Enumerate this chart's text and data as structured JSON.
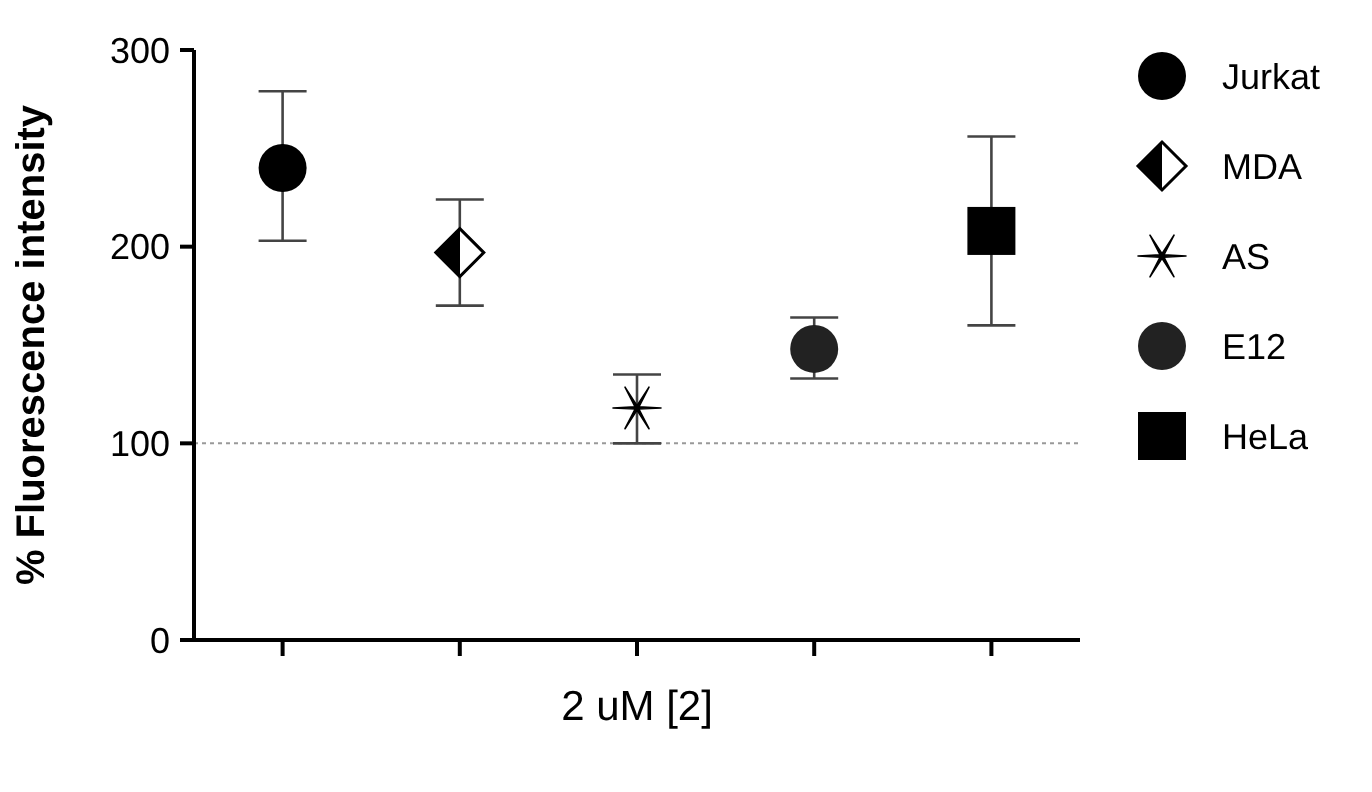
{
  "chart_data": {
    "type": "scatter",
    "xlabel": "2 uM [2]",
    "ylabel": "% Fluorescence intensity",
    "categories": [
      null,
      null,
      null,
      null,
      null
    ],
    "ylim": [
      0,
      300
    ],
    "yticks": [
      0,
      100,
      200,
      300
    ],
    "legend": "right",
    "grid": false,
    "ref_lines": [
      {
        "axis": "y",
        "value": 100,
        "color": "#999999",
        "line_style": "dotted"
      }
    ],
    "series": [
      {
        "name": "Jurkat",
        "color": "#000000",
        "marker": "circle",
        "values": [
          240,
          null,
          null,
          null,
          null
        ],
        "errors": [
          [
            203,
            279
          ],
          null,
          null,
          null,
          null
        ]
      },
      {
        "name": "MDA",
        "color": "#000000",
        "marker": "diamond",
        "values": [
          null,
          197,
          null,
          null,
          null
        ],
        "errors": [
          null,
          [
            170,
            224
          ],
          null,
          null,
          null
        ]
      },
      {
        "name": "AS",
        "color": "#000000",
        "marker": "cross",
        "values": [
          null,
          null,
          118,
          null,
          null
        ],
        "errors": [
          null,
          null,
          [
            100,
            135
          ],
          null,
          null
        ]
      },
      {
        "name": "E12",
        "color": "#222222",
        "marker": "circle",
        "values": [
          null,
          null,
          null,
          148,
          null
        ],
        "errors": [
          null,
          null,
          null,
          [
            133,
            164
          ],
          null
        ]
      },
      {
        "name": "HeLa",
        "color": "#000000",
        "marker": "square",
        "values": [
          null,
          null,
          null,
          null,
          208
        ],
        "errors": [
          null,
          null,
          null,
          null,
          [
            160,
            256
          ]
        ]
      }
    ]
  }
}
